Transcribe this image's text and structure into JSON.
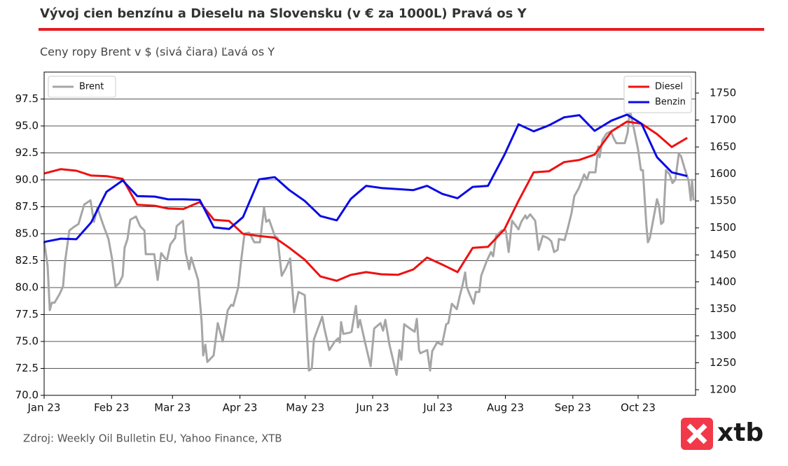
{
  "chart_data": {
    "type": "line",
    "title": "Vývoj cien benzínu a Dieselu na Slovensku (v € za 1000L) Pravá os Y",
    "subtitle": "Ceny ropy Brent v $ (sivá čiara) Ľavá os Y",
    "source": "Zdroj: Weekly Oil Bulletin EU, Yahoo Finance, XTB",
    "logo": "xtb",
    "xlim": [
      0,
      299.4
    ],
    "xticks": [
      {
        "value": 0,
        "label": "Jan 23"
      },
      {
        "value": 31,
        "label": "Feb 23"
      },
      {
        "value": 59,
        "label": "Mar 23"
      },
      {
        "value": 90,
        "label": "Apr 23"
      },
      {
        "value": 120,
        "label": "May 23"
      },
      {
        "value": 151,
        "label": "Jun 23"
      },
      {
        "value": 181,
        "label": "Jul 23"
      },
      {
        "value": 212,
        "label": "Aug 23"
      },
      {
        "value": 243,
        "label": "Sep 23"
      },
      {
        "value": 273,
        "label": "Oct 23"
      }
    ],
    "ylim": [
      70,
      100
    ],
    "yticks": [
      {
        "value": 70,
        "label": "70.0"
      },
      72.5,
      {
        "value": 75,
        "label": "75.0"
      },
      77.5,
      {
        "value": 80,
        "label": "80.0"
      },
      82.5,
      {
        "value": 85,
        "label": "85.0"
      },
      87.5,
      {
        "value": 90,
        "label": "90.0"
      },
      92.5,
      {
        "value": 95,
        "label": "95.0"
      },
      97.5
    ],
    "y2lim": [
      1189.6,
      1788.9
    ],
    "y2ticks": [
      1200,
      1250,
      1300,
      1350,
      1400,
      1450,
      1500,
      1550,
      1600,
      1650,
      1700,
      1750
    ],
    "grid": true,
    "legend_y": "upper left",
    "legend_y2": "upper right",
    "series": [
      {
        "name": "Brent",
        "color": "#a6a6a6",
        "axis": "y",
        "x": [
          0,
          1.6,
          2.6,
          3.5,
          4.8,
          7.1,
          8.7,
          9.7,
          11.6,
          13.5,
          15.8,
          18.4,
          21.3,
          22.9,
          24.5,
          27.0,
          29.6,
          31.2,
          32.8,
          34.5,
          36.1,
          37.0,
          38.3,
          39.6,
          42.2,
          44.1,
          46.1,
          46.7,
          50.6,
          52.2,
          53.8,
          56.4,
          58.0,
          60.2,
          60.9,
          63.8,
          65.0,
          66.7,
          67.6,
          70.8,
          72.4,
          73.1,
          74.1,
          75.0,
          77.9,
          79.8,
          82.1,
          84.4,
          86.0,
          86.9,
          89.2,
          90.5,
          92.1,
          94.3,
          96.6,
          99.2,
          101.1,
          102.1,
          103.4,
          106.0,
          107.3,
          109.2,
          111.1,
          113.1,
          114.9,
          116.9,
          119.8,
          121.7,
          123.0,
          124.0,
          127.8,
          128.8,
          131.1,
          133.6,
          135.2,
          135.9,
          136.5,
          137.5,
          140.1,
          141.3,
          143.3,
          144.3,
          145.2,
          147.5,
          150.1,
          151.7,
          154.6,
          155.8,
          156.8,
          158.7,
          162.0,
          163.3,
          164.2,
          165.5,
          168.1,
          170.3,
          171.3,
          172.3,
          172.9,
          176.1,
          177.4,
          178.4,
          180.6,
          182.9,
          184.8,
          185.8,
          187.4,
          189.7,
          191.0,
          192.3,
          193.5,
          194.2,
          195.5,
          197.4,
          198.4,
          200.0,
          200.9,
          203.5,
          205.4,
          206.4,
          207.7,
          210.3,
          212.2,
          213.5,
          215.1,
          218.0,
          219.3,
          221.2,
          221.8,
          223.4,
          225.7,
          227.3,
          229.2,
          231.5,
          233.1,
          234.4,
          236.0,
          236.6,
          239.2,
          240.8,
          242.4,
          243.7,
          245.7,
          248.2,
          249.5,
          250.5,
          253.4,
          254.7,
          255.3,
          256.6,
          258.5,
          260.5,
          261.7,
          263.0,
          266.9,
          268.2,
          269.2,
          271.1,
          273.0,
          274.3,
          275.2,
          276.8,
          277.5,
          278.4,
          281.7,
          282.6,
          283.6,
          284.6,
          285.8,
          287.5,
          288.8,
          290.1,
          291.7,
          292.7,
          294.3,
          296.2,
          297.2,
          297.8,
          298.5
        ],
        "values": [
          84.3,
          82.0,
          77.9,
          78.6,
          78.6,
          79.4,
          80.1,
          82.5,
          85.3,
          85.6,
          85.9,
          87.7,
          88.1,
          86.1,
          87.4,
          85.9,
          84.5,
          82.7,
          80.1,
          80.4,
          81.1,
          83.7,
          84.5,
          86.3,
          86.6,
          85.7,
          85.3,
          83.1,
          83.1,
          80.7,
          83.2,
          82.5,
          84.0,
          84.6,
          85.7,
          86.2,
          83.3,
          81.7,
          82.8,
          80.7,
          76.8,
          73.7,
          74.7,
          73.1,
          73.7,
          76.7,
          75.0,
          77.9,
          78.4,
          78.3,
          80.0,
          82.4,
          85.0,
          85.1,
          84.2,
          84.2,
          87.4,
          86.1,
          86.3,
          84.8,
          84.6,
          81.1,
          81.8,
          82.7,
          77.7,
          79.6,
          79.3,
          72.3,
          72.5,
          75.2,
          77.3,
          76.2,
          74.2,
          75.0,
          75.3,
          74.9,
          76.8,
          75.7,
          75.8,
          75.9,
          78.3,
          76.3,
          77.0,
          74.9,
          72.7,
          76.2,
          76.7,
          76.0,
          77.0,
          74.7,
          71.9,
          74.2,
          73.3,
          76.6,
          76.2,
          75.9,
          77.1,
          74.2,
          73.9,
          74.2,
          72.3,
          74.1,
          74.9,
          74.7,
          76.6,
          76.7,
          78.5,
          78.0,
          79.2,
          80.2,
          81.4,
          80.1,
          79.4,
          78.5,
          79.6,
          79.6,
          81.1,
          82.5,
          83.3,
          82.9,
          84.8,
          85.3,
          85.3,
          83.3,
          86.2,
          85.4,
          86.1,
          86.7,
          86.4,
          86.8,
          86.2,
          83.5,
          84.8,
          84.6,
          84.3,
          83.3,
          83.5,
          84.5,
          84.4,
          85.6,
          86.9,
          88.5,
          89.2,
          90.5,
          90.0,
          90.7,
          90.7,
          93.1,
          92.1,
          93.7,
          94.3,
          94.5,
          93.9,
          93.4,
          93.4,
          94.4,
          96.5,
          94.7,
          92.8,
          90.9,
          90.9,
          85.8,
          84.2,
          84.6,
          88.2,
          87.6,
          85.9,
          86.1,
          90.9,
          90.5,
          89.7,
          90.0,
          92.4,
          92.2,
          91.1,
          89.9,
          88.1,
          90.0,
          88.1
        ]
      },
      {
        "name": "Diesel",
        "color": "#ee1111",
        "axis": "y2",
        "x": [
          0,
          7.7,
          14.8,
          21.6,
          28.7,
          36.1,
          42.8,
          50.9,
          57,
          64,
          71.5,
          78,
          85,
          91.4,
          98.8,
          106,
          112.7,
          119.8,
          127,
          134.5,
          141,
          148,
          155,
          162.6,
          169.7,
          176,
          183,
          190,
          197,
          204,
          211.5,
          218,
          225,
          232,
          239,
          246,
          253,
          260.8,
          267.9,
          274.6,
          281.7,
          288.5,
          295.6
        ],
        "values": [
          1601,
          1609,
          1606,
          1597,
          1596,
          1591,
          1543,
          1541,
          1536,
          1535,
          1548,
          1515,
          1513,
          1489,
          1485,
          1482,
          1463,
          1441,
          1410,
          1402,
          1413,
          1418,
          1414,
          1413,
          1423,
          1445,
          1432,
          1418,
          1463,
          1465,
          1497,
          1550,
          1603,
          1605,
          1622,
          1626,
          1636,
          1679,
          1697,
          1693,
          1674,
          1650,
          1667
        ]
      },
      {
        "name": "Benzin",
        "color": "#0a0ae6",
        "axis": "y2",
        "x": [
          0,
          7.7,
          14.8,
          21.6,
          28.7,
          36.1,
          42.8,
          50.9,
          57,
          64,
          71.5,
          78,
          85,
          91.4,
          98.8,
          106,
          112.7,
          119.8,
          127,
          134.5,
          141,
          148,
          155,
          162.6,
          169.7,
          176,
          183,
          190,
          197,
          204,
          211.5,
          218,
          225,
          232,
          239,
          246,
          253,
          260.8,
          267.9,
          274.6,
          281.7,
          288.5,
          295.6
        ],
        "values": [
          1474,
          1480,
          1479,
          1510,
          1567,
          1588,
          1559,
          1558,
          1553,
          1553,
          1552,
          1501,
          1498,
          1520,
          1590,
          1594,
          1570,
          1550,
          1522,
          1514,
          1554,
          1578,
          1574,
          1572,
          1570,
          1578,
          1563,
          1555,
          1576,
          1578,
          1635,
          1692,
          1679,
          1690,
          1705,
          1709,
          1680,
          1699,
          1710,
          1693,
          1631,
          1603,
          1596
        ]
      }
    ]
  }
}
